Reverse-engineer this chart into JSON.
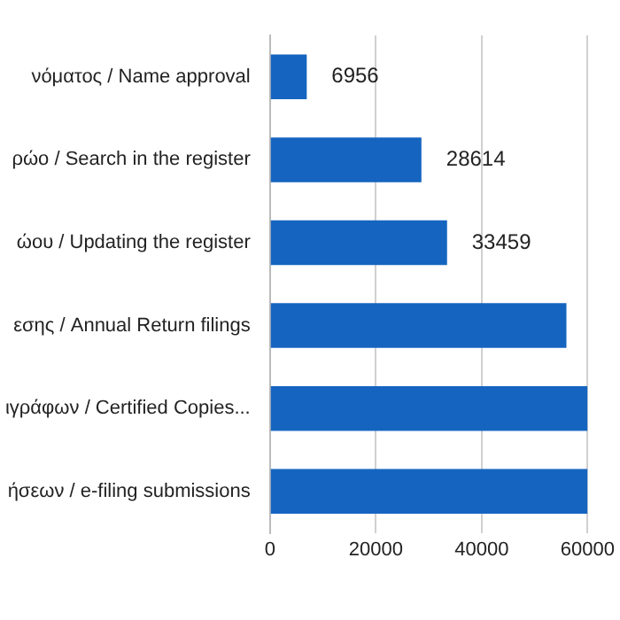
{
  "chart_data": {
    "type": "bar",
    "orientation": "horizontal",
    "categories": [
      "νόματος / Name approval",
      "ρώο / Search in the register",
      "ώου / Updating the register",
      "εσης / Annual Return filings",
      "ιγράφων / Certified Copies...",
      "ήσεων / e-filing submissions"
    ],
    "values": [
      6956,
      28614,
      33459,
      56000,
      60000,
      60000
    ],
    "value_labels": [
      "6956",
      "28614",
      "33459",
      null,
      null,
      null
    ],
    "color": "#1565c0",
    "xlim": [
      0,
      60000
    ],
    "xticks": [
      0,
      20000,
      40000,
      60000
    ],
    "grid": "x",
    "legend": false
  }
}
